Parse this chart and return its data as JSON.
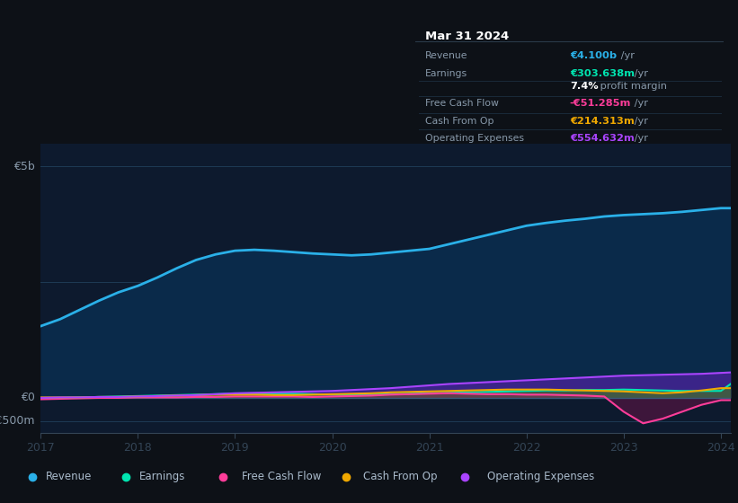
{
  "background_color": "#0d1117",
  "plot_bg_color": "#0d1a2e",
  "years": [
    2017.0,
    2017.2,
    2017.4,
    2017.6,
    2017.8,
    2018.0,
    2018.2,
    2018.4,
    2018.6,
    2018.8,
    2019.0,
    2019.2,
    2019.4,
    2019.6,
    2019.8,
    2020.0,
    2020.2,
    2020.4,
    2020.6,
    2020.8,
    2021.0,
    2021.2,
    2021.4,
    2021.6,
    2021.8,
    2022.0,
    2022.2,
    2022.4,
    2022.6,
    2022.8,
    2023.0,
    2023.2,
    2023.4,
    2023.6,
    2023.8,
    2024.0,
    2024.1
  ],
  "revenue": [
    1.55,
    1.7,
    1.9,
    2.1,
    2.28,
    2.42,
    2.6,
    2.8,
    2.98,
    3.1,
    3.18,
    3.2,
    3.18,
    3.15,
    3.12,
    3.1,
    3.08,
    3.1,
    3.14,
    3.18,
    3.22,
    3.32,
    3.42,
    3.52,
    3.62,
    3.72,
    3.78,
    3.83,
    3.87,
    3.92,
    3.95,
    3.97,
    3.99,
    4.02,
    4.06,
    4.1,
    4.1
  ],
  "earnings": [
    0.0,
    0.0,
    0.01,
    0.02,
    0.03,
    0.04,
    0.05,
    0.06,
    0.07,
    0.08,
    0.09,
    0.09,
    0.09,
    0.09,
    0.08,
    0.07,
    0.06,
    0.07,
    0.08,
    0.09,
    0.1,
    0.11,
    0.12,
    0.13,
    0.14,
    0.15,
    0.16,
    0.16,
    0.17,
    0.17,
    0.18,
    0.17,
    0.16,
    0.15,
    0.15,
    0.15,
    0.3
  ],
  "free_cash_flow": [
    -0.03,
    -0.02,
    -0.01,
    0.0,
    0.0,
    0.01,
    0.01,
    0.01,
    0.02,
    0.02,
    0.03,
    0.03,
    0.03,
    0.03,
    0.02,
    0.03,
    0.04,
    0.05,
    0.07,
    0.08,
    0.09,
    0.1,
    0.09,
    0.08,
    0.08,
    0.07,
    0.07,
    0.06,
    0.05,
    0.03,
    -0.3,
    -0.55,
    -0.45,
    -0.3,
    -0.15,
    -0.05,
    -0.05
  ],
  "cash_from_op": [
    0.01,
    0.01,
    0.01,
    0.02,
    0.02,
    0.03,
    0.04,
    0.05,
    0.06,
    0.07,
    0.07,
    0.07,
    0.06,
    0.06,
    0.07,
    0.08,
    0.09,
    0.1,
    0.12,
    0.13,
    0.14,
    0.15,
    0.16,
    0.17,
    0.18,
    0.18,
    0.18,
    0.17,
    0.16,
    0.15,
    0.14,
    0.12,
    0.1,
    0.12,
    0.16,
    0.21,
    0.21
  ],
  "operating_expenses": [
    0.0,
    0.01,
    0.01,
    0.02,
    0.02,
    0.03,
    0.04,
    0.05,
    0.06,
    0.08,
    0.1,
    0.11,
    0.12,
    0.13,
    0.14,
    0.15,
    0.17,
    0.19,
    0.21,
    0.24,
    0.27,
    0.3,
    0.32,
    0.34,
    0.36,
    0.38,
    0.4,
    0.42,
    0.44,
    0.46,
    0.48,
    0.49,
    0.5,
    0.51,
    0.52,
    0.54,
    0.55
  ],
  "revenue_color": "#2ab0e8",
  "earnings_color": "#00e5b0",
  "free_cash_flow_color": "#ff3d9a",
  "cash_from_op_color": "#f0a800",
  "operating_expenses_color": "#aa44ff",
  "ylabel_5b": "€5b",
  "ylabel_0": "€0",
  "ylabel_neg500m": "-€500m",
  "xtick_labels": [
    "2017",
    "2018",
    "2019",
    "2020",
    "2021",
    "2022",
    "2023",
    "2024"
  ],
  "xtick_positions": [
    2017,
    2018,
    2019,
    2020,
    2021,
    2022,
    2023,
    2024
  ],
  "ylim_min": -0.75,
  "ylim_max": 5.5,
  "legend_items": [
    {
      "label": "Revenue",
      "color": "#2ab0e8"
    },
    {
      "label": "Earnings",
      "color": "#00e5b0"
    },
    {
      "label": "Free Cash Flow",
      "color": "#ff3d9a"
    },
    {
      "label": "Cash From Op",
      "color": "#f0a800"
    },
    {
      "label": "Operating Expenses",
      "color": "#aa44ff"
    }
  ],
  "tooltip_title": "Mar 31 2024",
  "tooltip_rows": [
    {
      "label": "Revenue",
      "value": "€4.100b",
      "suffix": " /yr",
      "value_color": "#2ab0e8"
    },
    {
      "label": "Earnings",
      "value": "€303.638m",
      "suffix": " /yr",
      "value_color": "#00e5b0"
    },
    {
      "label": "",
      "value": "7.4%",
      "suffix": " profit margin",
      "value_color": "#ffffff"
    },
    {
      "label": "Free Cash Flow",
      "value": "-€51.285m",
      "suffix": " /yr",
      "value_color": "#ff3d9a"
    },
    {
      "label": "Cash From Op",
      "value": "€214.313m",
      "suffix": " /yr",
      "value_color": "#f0a800"
    },
    {
      "label": "Operating Expenses",
      "value": "€554.632m",
      "suffix": " /yr",
      "value_color": "#aa44ff"
    }
  ]
}
